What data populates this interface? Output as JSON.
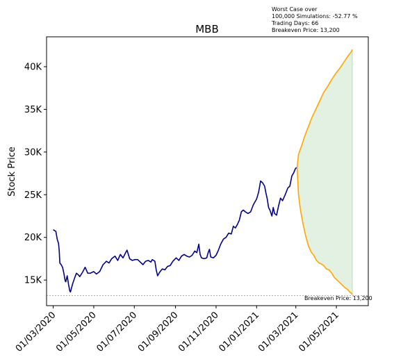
{
  "chart_data": {
    "type": "line",
    "title": "MBB",
    "ylabel": "Stock Price",
    "xlabel": "",
    "ylim": [
      12000,
      43500
    ],
    "xlim": [
      "2020-02-20",
      "2021-06-18"
    ],
    "grid": false,
    "yticks": [
      {
        "value": 15000,
        "label": "15K"
      },
      {
        "value": 20000,
        "label": "20K"
      },
      {
        "value": 25000,
        "label": "25K"
      },
      {
        "value": 30000,
        "label": "30K"
      },
      {
        "value": 35000,
        "label": "35K"
      },
      {
        "value": 40000,
        "label": "40K"
      }
    ],
    "xticks": [
      {
        "date": "2020-03-01",
        "label": "01/03/2020"
      },
      {
        "date": "2020-05-01",
        "label": "01/05/2020"
      },
      {
        "date": "2020-07-01",
        "label": "01/07/2020"
      },
      {
        "date": "2020-09-01",
        "label": "01/09/2020"
      },
      {
        "date": "2020-11-01",
        "label": "01/11/2020"
      },
      {
        "date": "2021-01-01",
        "label": "01/01/2021"
      },
      {
        "date": "2021-03-01",
        "label": "01/03/2021"
      },
      {
        "date": "2021-05-01",
        "label": "01/05/2021"
      }
    ],
    "annotations": {
      "info_lines": [
        "Worst Case over",
        "100,000 Simulations: -52.77 %",
        "Trading Days: 66",
        "Breakeven Price: 13,200"
      ],
      "breakeven_label": "Breakeven Price: 13,200",
      "breakeven_value": 13200
    },
    "series": [
      {
        "role": "historical",
        "color": "#00008b",
        "points": [
          [
            "2020-03-01",
            20900
          ],
          [
            "2020-03-03",
            20800
          ],
          [
            "2020-03-05",
            20700
          ],
          [
            "2020-03-07",
            19800
          ],
          [
            "2020-03-09",
            19300
          ],
          [
            "2020-03-10",
            18500
          ],
          [
            "2020-03-11",
            17000
          ],
          [
            "2020-03-13",
            16800
          ],
          [
            "2020-03-15",
            16500
          ],
          [
            "2020-03-17",
            15800
          ],
          [
            "2020-03-19",
            14900
          ],
          [
            "2020-03-20",
            14800
          ],
          [
            "2020-03-22",
            15500
          ],
          [
            "2020-03-24",
            14500
          ],
          [
            "2020-03-26",
            13700
          ],
          [
            "2020-03-27",
            13600
          ],
          [
            "2020-03-30",
            14500
          ],
          [
            "2020-04-02",
            15200
          ],
          [
            "2020-04-05",
            15800
          ],
          [
            "2020-04-08",
            15600
          ],
          [
            "2020-04-10",
            15400
          ],
          [
            "2020-04-14",
            15900
          ],
          [
            "2020-04-18",
            16500
          ],
          [
            "2020-04-22",
            15800
          ],
          [
            "2020-04-26",
            15800
          ],
          [
            "2020-05-01",
            16000
          ],
          [
            "2020-05-05",
            15700
          ],
          [
            "2020-05-10",
            16000
          ],
          [
            "2020-05-15",
            16800
          ],
          [
            "2020-05-20",
            17200
          ],
          [
            "2020-05-24",
            17000
          ],
          [
            "2020-05-28",
            17500
          ],
          [
            "2020-06-02",
            17800
          ],
          [
            "2020-06-06",
            17300
          ],
          [
            "2020-06-10",
            18000
          ],
          [
            "2020-06-14",
            17600
          ],
          [
            "2020-06-18",
            18200
          ],
          [
            "2020-06-20",
            18500
          ],
          [
            "2020-06-24",
            17500
          ],
          [
            "2020-06-28",
            17300
          ],
          [
            "2020-07-02",
            17400
          ],
          [
            "2020-07-06",
            17400
          ],
          [
            "2020-07-10",
            17100
          ],
          [
            "2020-07-14",
            16800
          ],
          [
            "2020-07-18",
            17200
          ],
          [
            "2020-07-22",
            17300
          ],
          [
            "2020-07-26",
            17100
          ],
          [
            "2020-07-28",
            17400
          ],
          [
            "2020-08-01",
            17200
          ],
          [
            "2020-08-03",
            16200
          ],
          [
            "2020-08-05",
            15500
          ],
          [
            "2020-08-08",
            15900
          ],
          [
            "2020-08-12",
            16300
          ],
          [
            "2020-08-16",
            16200
          ],
          [
            "2020-08-20",
            16600
          ],
          [
            "2020-08-24",
            16700
          ],
          [
            "2020-08-28",
            17200
          ],
          [
            "2020-09-02",
            17600
          ],
          [
            "2020-09-06",
            17300
          ],
          [
            "2020-09-10",
            17800
          ],
          [
            "2020-09-14",
            18000
          ],
          [
            "2020-09-18",
            17800
          ],
          [
            "2020-09-22",
            17700
          ],
          [
            "2020-09-26",
            17900
          ],
          [
            "2020-09-30",
            18400
          ],
          [
            "2020-10-03",
            18200
          ],
          [
            "2020-10-06",
            19200
          ],
          [
            "2020-10-08",
            18000
          ],
          [
            "2020-10-10",
            17600
          ],
          [
            "2020-10-14",
            17500
          ],
          [
            "2020-10-18",
            17600
          ],
          [
            "2020-10-20",
            18200
          ],
          [
            "2020-10-22",
            18600
          ],
          [
            "2020-10-24",
            17700
          ],
          [
            "2020-10-28",
            17600
          ],
          [
            "2020-11-01",
            17900
          ],
          [
            "2020-11-04",
            18400
          ],
          [
            "2020-11-08",
            19200
          ],
          [
            "2020-11-12",
            19800
          ],
          [
            "2020-11-16",
            20000
          ],
          [
            "2020-11-20",
            20500
          ],
          [
            "2020-11-24",
            20400
          ],
          [
            "2020-11-27",
            21300
          ],
          [
            "2020-11-30",
            21100
          ],
          [
            "2020-12-03",
            21500
          ],
          [
            "2020-12-06",
            22000
          ],
          [
            "2020-12-09",
            23000
          ],
          [
            "2020-12-12",
            23200
          ],
          [
            "2020-12-15",
            23000
          ],
          [
            "2020-12-19",
            22800
          ],
          [
            "2020-12-23",
            23000
          ],
          [
            "2020-12-27",
            23800
          ],
          [
            "2021-01-01",
            24500
          ],
          [
            "2021-01-04",
            25300
          ],
          [
            "2021-01-07",
            26600
          ],
          [
            "2021-01-10",
            26400
          ],
          [
            "2021-01-13",
            26000
          ],
          [
            "2021-01-15",
            25200
          ],
          [
            "2021-01-17",
            24500
          ],
          [
            "2021-01-19",
            23500
          ],
          [
            "2021-01-21",
            23200
          ],
          [
            "2021-01-24",
            22500
          ],
          [
            "2021-01-26",
            23500
          ],
          [
            "2021-01-28",
            22800
          ],
          [
            "2021-01-31",
            22600
          ],
          [
            "2021-02-03",
            23700
          ],
          [
            "2021-02-06",
            24600
          ],
          [
            "2021-02-09",
            24300
          ],
          [
            "2021-02-13",
            25000
          ],
          [
            "2021-02-17",
            25800
          ],
          [
            "2021-02-20",
            26000
          ],
          [
            "2021-02-23",
            27200
          ],
          [
            "2021-02-26",
            27600
          ],
          [
            "2021-02-28",
            28000
          ],
          [
            "2021-03-02",
            28200
          ]
        ]
      },
      {
        "role": "simulated-best",
        "color": "#ffa500",
        "points": [
          [
            "2021-03-03",
            28200
          ],
          [
            "2021-03-05",
            29700
          ],
          [
            "2021-03-10",
            30800
          ],
          [
            "2021-03-15",
            32000
          ],
          [
            "2021-03-20",
            33000
          ],
          [
            "2021-03-25",
            34000
          ],
          [
            "2021-03-31",
            35000
          ],
          [
            "2021-04-06",
            36000
          ],
          [
            "2021-04-12",
            37000
          ],
          [
            "2021-04-18",
            37700
          ],
          [
            "2021-04-24",
            38500
          ],
          [
            "2021-04-30",
            39200
          ],
          [
            "2021-05-06",
            39800
          ],
          [
            "2021-05-12",
            40500
          ],
          [
            "2021-05-18",
            41200
          ],
          [
            "2021-05-23",
            41700
          ],
          [
            "2021-05-25",
            42000
          ]
        ]
      },
      {
        "role": "simulated-worst",
        "color": "#ffa500",
        "points": [
          [
            "2021-03-03",
            28200
          ],
          [
            "2021-03-05",
            25000
          ],
          [
            "2021-03-08",
            23200
          ],
          [
            "2021-03-12",
            21500
          ],
          [
            "2021-03-16",
            20100
          ],
          [
            "2021-03-20",
            19000
          ],
          [
            "2021-03-24",
            18300
          ],
          [
            "2021-03-28",
            17900
          ],
          [
            "2021-04-01",
            17300
          ],
          [
            "2021-04-05",
            17000
          ],
          [
            "2021-04-08",
            16900
          ],
          [
            "2021-04-12",
            16700
          ],
          [
            "2021-04-16",
            16300
          ],
          [
            "2021-04-20",
            16200
          ],
          [
            "2021-04-24",
            15800
          ],
          [
            "2021-04-28",
            15300
          ],
          [
            "2021-05-02",
            15000
          ],
          [
            "2021-05-06",
            14700
          ],
          [
            "2021-05-10",
            14400
          ],
          [
            "2021-05-14",
            14100
          ],
          [
            "2021-05-18",
            13900
          ],
          [
            "2021-05-21",
            13600
          ],
          [
            "2021-05-23",
            13500
          ],
          [
            "2021-05-25",
            13300
          ]
        ]
      }
    ],
    "fill": {
      "between": [
        "simulated-best",
        "simulated-worst"
      ],
      "color": "#e3f1e3",
      "edge_color": "#b9dcb9"
    }
  }
}
